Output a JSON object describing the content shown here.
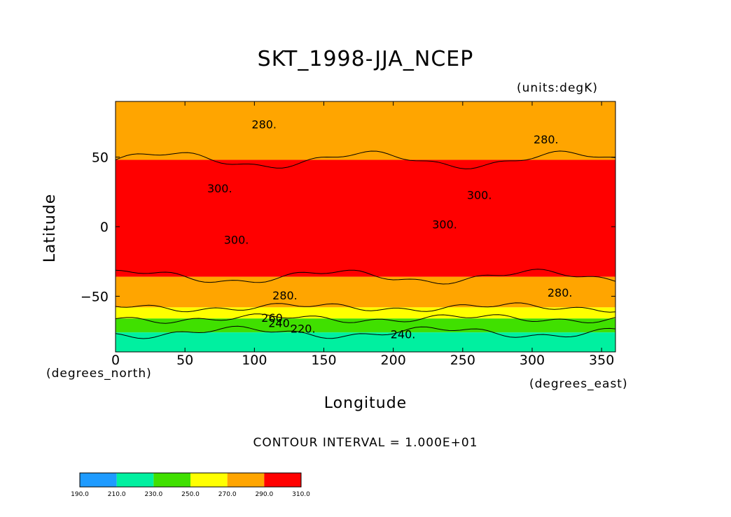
{
  "chart_data": {
    "type": "heatmap",
    "title": "SKT_1998-JJA_NCEP",
    "units_label": "(units:degK)",
    "xlabel": "Longitude",
    "ylabel": "Latitude",
    "x_units": "(degrees_east)",
    "y_units": "(degrees_north)",
    "contour_interval_text": "CONTOUR INTERVAL = 1.000E+01",
    "xlim": [
      0,
      360
    ],
    "ylim": [
      -90,
      90
    ],
    "x_ticks": [
      0,
      50,
      100,
      150,
      200,
      250,
      300,
      350
    ],
    "y_ticks": [
      -50,
      0,
      50
    ],
    "x_tick_labels": [
      "0",
      "50",
      "100",
      "150",
      "200",
      "250",
      "300",
      "350"
    ],
    "y_tick_labels": [
      "−50",
      "0",
      "50"
    ],
    "colorbar": {
      "levels": [
        "190.0",
        "210.0",
        "230.0",
        "250.0",
        "270.0",
        "290.0",
        "310.0"
      ],
      "colors": [
        "#1e9bff",
        "#00f0a0",
        "#40e000",
        "#ffff00",
        "#ffa500",
        "#ff0000"
      ]
    },
    "zonal_bands": [
      {
        "lat_from": 90,
        "lat_to": 48,
        "value_range": "270-290"
      },
      {
        "lat_from": 48,
        "lat_to": -36,
        "value_range": "290-310"
      },
      {
        "lat_from": -36,
        "lat_to": -58,
        "value_range": "270-290"
      },
      {
        "lat_from": -58,
        "lat_to": -66,
        "value_range": "250-270"
      },
      {
        "lat_from": -66,
        "lat_to": -76,
        "value_range": "230-250"
      },
      {
        "lat_from": -76,
        "lat_to": -90,
        "value_range": "210-230"
      }
    ],
    "contour_labels": [
      {
        "text": "280.",
        "lon": 107,
        "lat": 73
      },
      {
        "text": "280.",
        "lon": 310,
        "lat": 62
      },
      {
        "text": "300.",
        "lon": 75,
        "lat": 27
      },
      {
        "text": "300.",
        "lon": 262,
        "lat": 22
      },
      {
        "text": "300.",
        "lon": 237,
        "lat": 1
      },
      {
        "text": "300.",
        "lon": 87,
        "lat": -10
      },
      {
        "text": "280.",
        "lon": 122,
        "lat": -50
      },
      {
        "text": "280.",
        "lon": 320,
        "lat": -48
      },
      {
        "text": "260.",
        "lon": 114,
        "lat": -66
      },
      {
        "text": "240.",
        "lon": 119,
        "lat": -70
      },
      {
        "text": "220.",
        "lon": 135,
        "lat": -74
      },
      {
        "text": "240.",
        "lon": 207,
        "lat": -78
      }
    ]
  }
}
